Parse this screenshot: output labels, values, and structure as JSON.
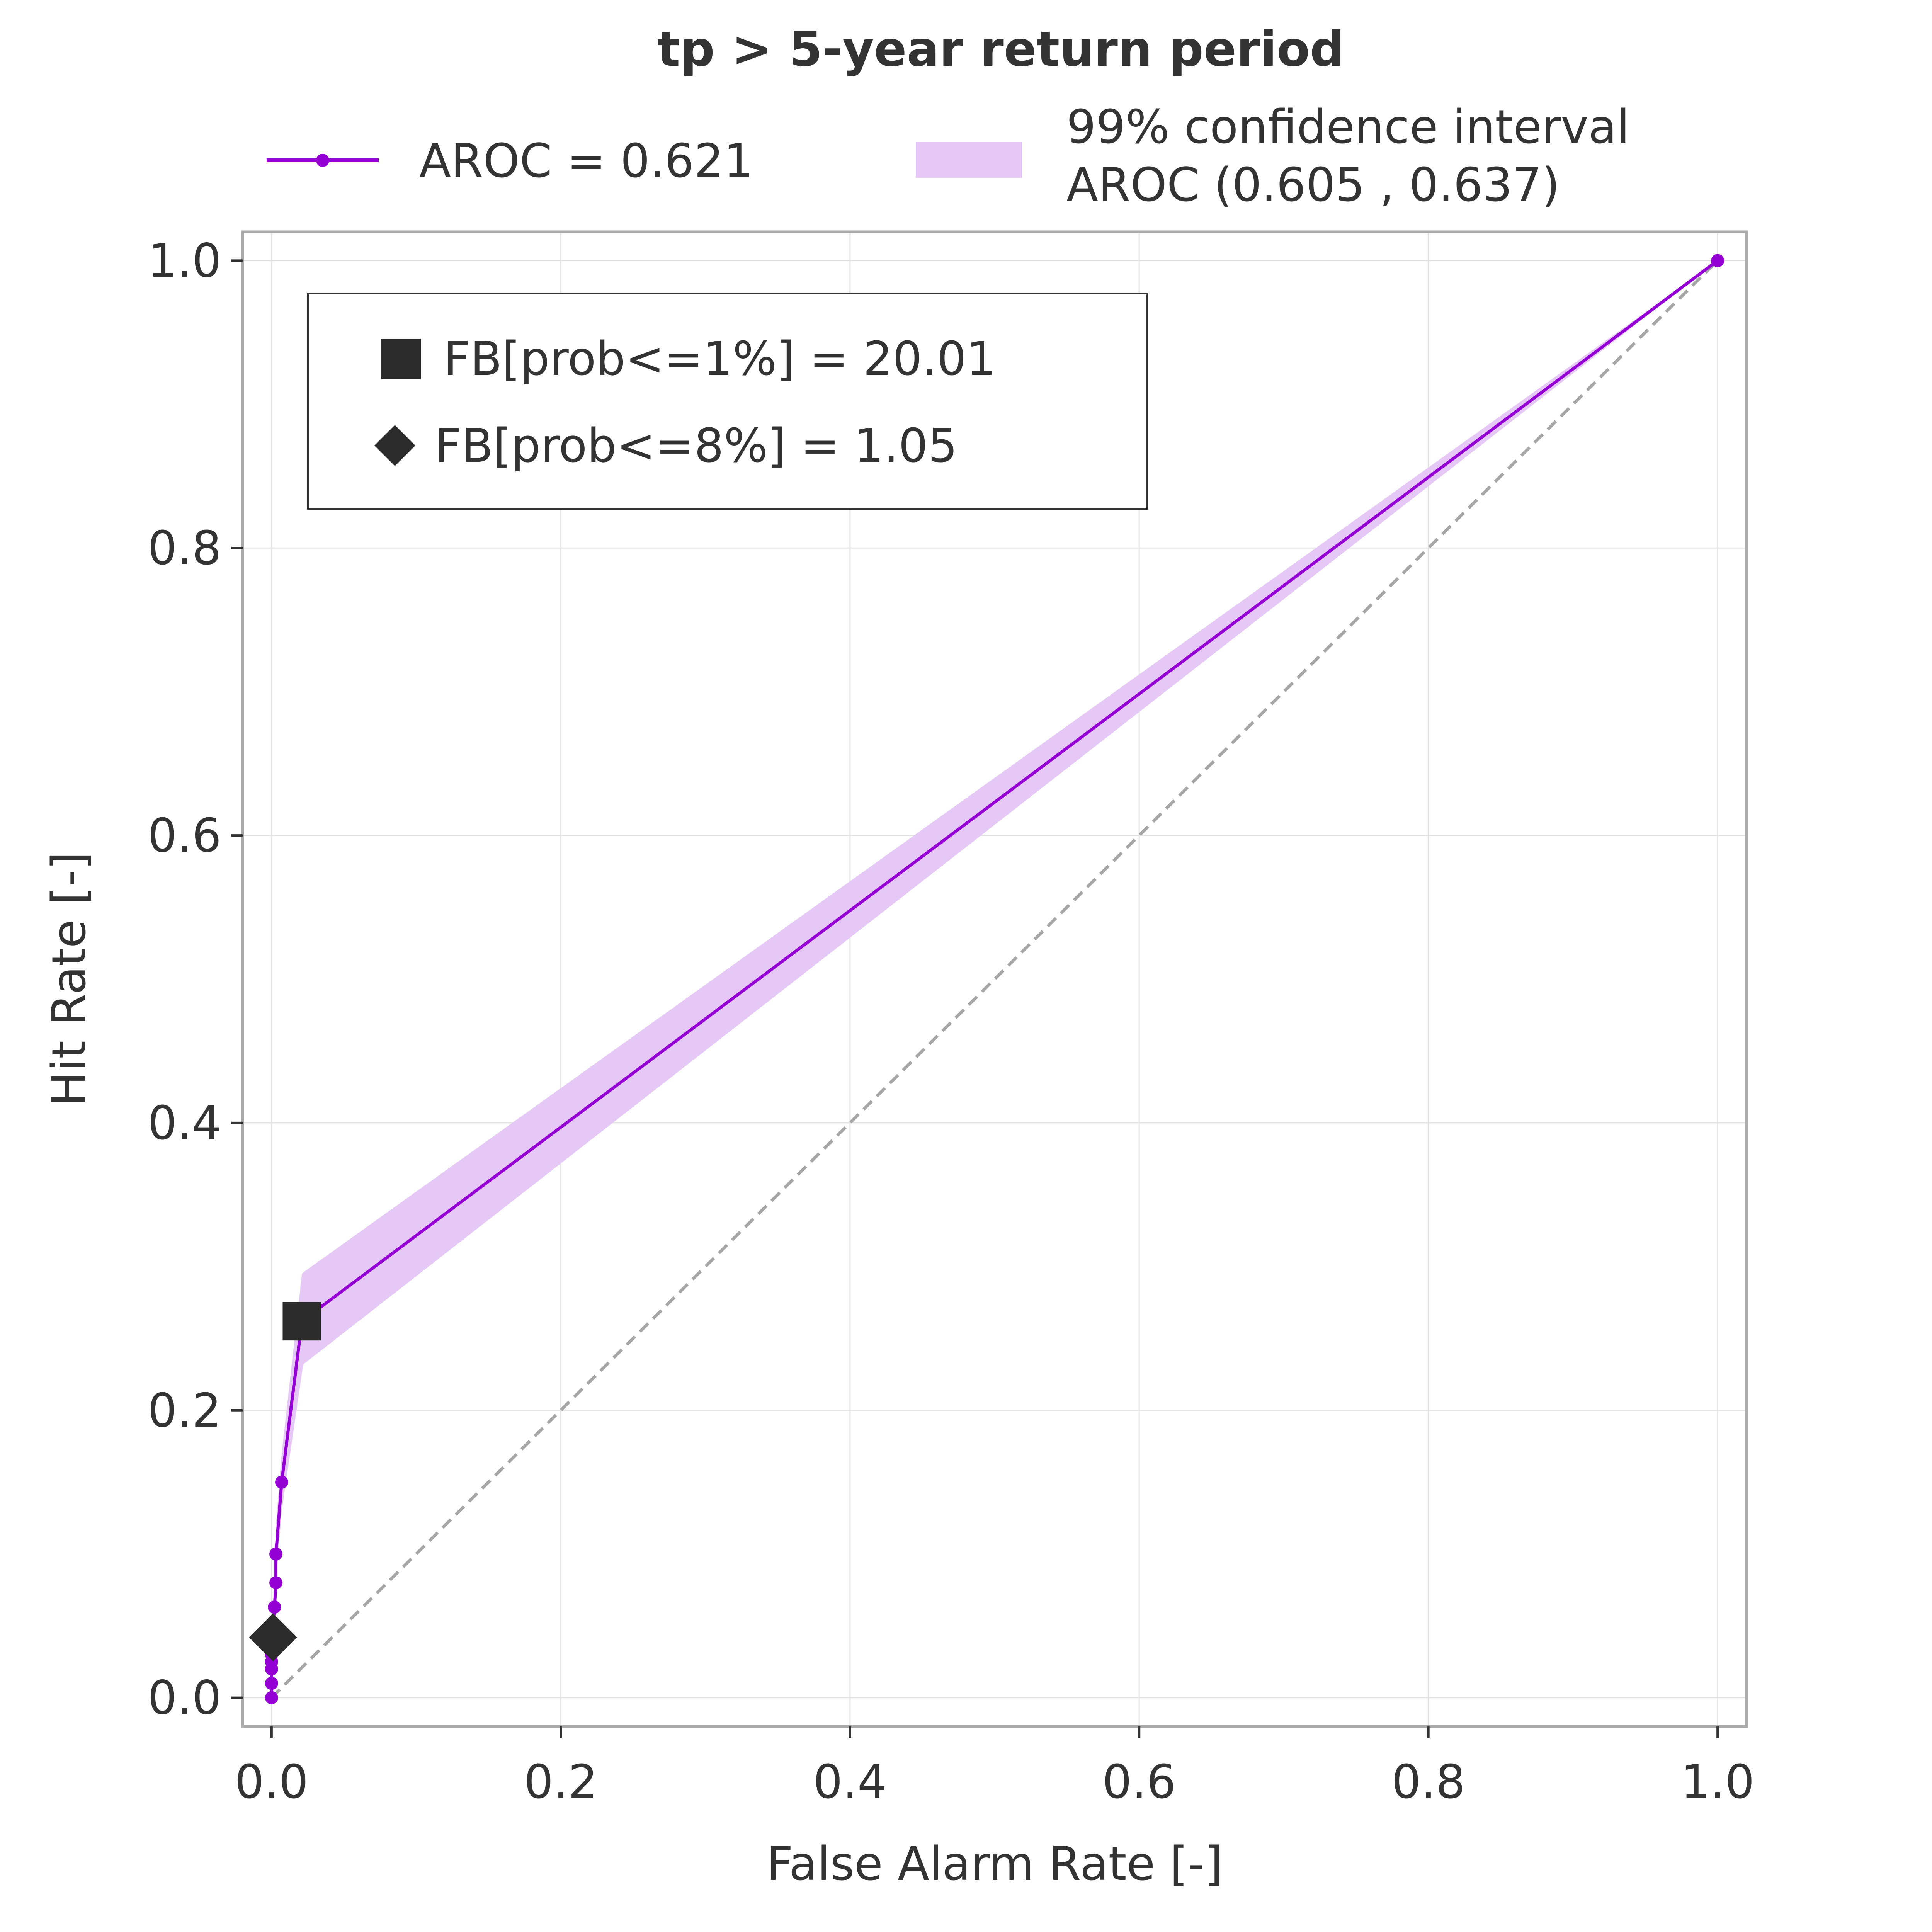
{
  "chart_data": {
    "type": "line",
    "title": "tp > 5-year return period",
    "xlabel": "False Alarm Rate [-]",
    "ylabel": "Hit Rate [-]",
    "xlim": [
      -0.02,
      1.02
    ],
    "ylim": [
      -0.02,
      1.02
    ],
    "xticks": [
      0.0,
      0.2,
      0.4,
      0.6,
      0.8,
      1.0
    ],
    "yticks": [
      0.0,
      0.2,
      0.4,
      0.6,
      0.8,
      1.0
    ],
    "xtick_labels": [
      "0.0",
      "0.2",
      "0.4",
      "0.6",
      "0.8",
      "1.0"
    ],
    "ytick_labels": [
      "0.0",
      "0.2",
      "0.4",
      "0.6",
      "0.8",
      "1.0"
    ],
    "grid": true,
    "legend_placement": "top, above plot",
    "series": [
      {
        "name": "AROC = 0.621",
        "color": "#9400d3",
        "x": [
          0.0,
          0.0,
          0.0,
          0.0,
          0.0,
          0.0,
          0.0,
          0.001,
          0.002,
          0.003,
          0.003,
          0.007,
          0.021,
          1.0
        ],
        "y": [
          0.0,
          0.01,
          0.02,
          0.025,
          0.03,
          0.035,
          0.04,
          0.05,
          0.063,
          0.08,
          0.1,
          0.15,
          0.262,
          1.0
        ]
      }
    ],
    "confidence_band": {
      "label_line1": "99% confidence interval",
      "label_line2": "AROC (0.605 , 0.637)",
      "color": "#e5c8f5",
      "x": [
        0.003,
        0.007,
        0.021,
        0.022,
        1.0
      ],
      "lower": [
        0.08,
        0.13,
        0.226,
        0.232,
        1.0
      ],
      "upper": [
        0.12,
        0.17,
        0.295,
        0.296,
        1.0
      ]
    },
    "reference_line": {
      "x": [
        0,
        1
      ],
      "y": [
        0,
        1
      ],
      "style": "dashed",
      "color": "#a6a6a6"
    },
    "markers": [
      {
        "label": "FB[prob<=1%] = 20.01",
        "shape": "square",
        "x": 0.021,
        "y": 0.262
      },
      {
        "label": "FB[prob<=8%] = 1.05",
        "shape": "diamond",
        "x": 0.001,
        "y": 0.042
      }
    ]
  }
}
